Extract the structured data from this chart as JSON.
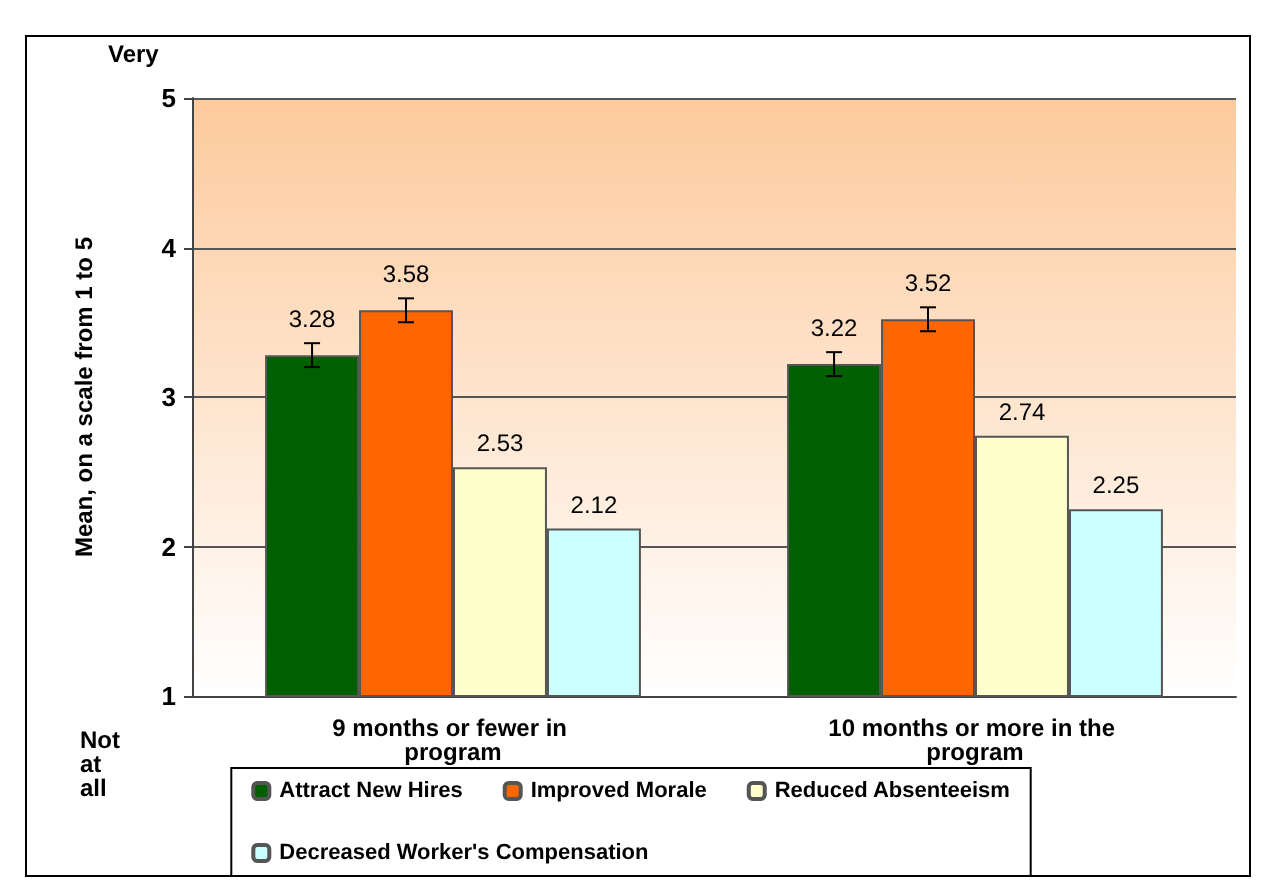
{
  "chart_data": {
    "type": "bar",
    "ylabel": "Mean, on a scale from 1 to 5",
    "categories": [
      "9 months or fewer in program",
      "10 months or more in the program"
    ],
    "series": [
      {
        "name": "Attract New Hires",
        "color": "#006000",
        "values": [
          3.28,
          3.22
        ],
        "errors": [
          0.08,
          0.08
        ]
      },
      {
        "name": "Improved Morale",
        "color": "#ff6600",
        "values": [
          3.58,
          3.52
        ],
        "errors": [
          0.08,
          0.08
        ]
      },
      {
        "name": "Reduced Absenteeism",
        "color": "#ffffcc",
        "values": [
          2.53,
          2.74
        ]
      },
      {
        "name": "Decreased Worker's Compensation",
        "color": "#ccffff",
        "values": [
          2.12,
          2.25
        ]
      }
    ],
    "ylim": [
      1,
      5
    ],
    "yticks": [
      1,
      2,
      3,
      4,
      5
    ],
    "grid": "y",
    "data_labels": true,
    "legend": "bottom",
    "annotations": [
      "Very",
      "Not at all"
    ]
  }
}
